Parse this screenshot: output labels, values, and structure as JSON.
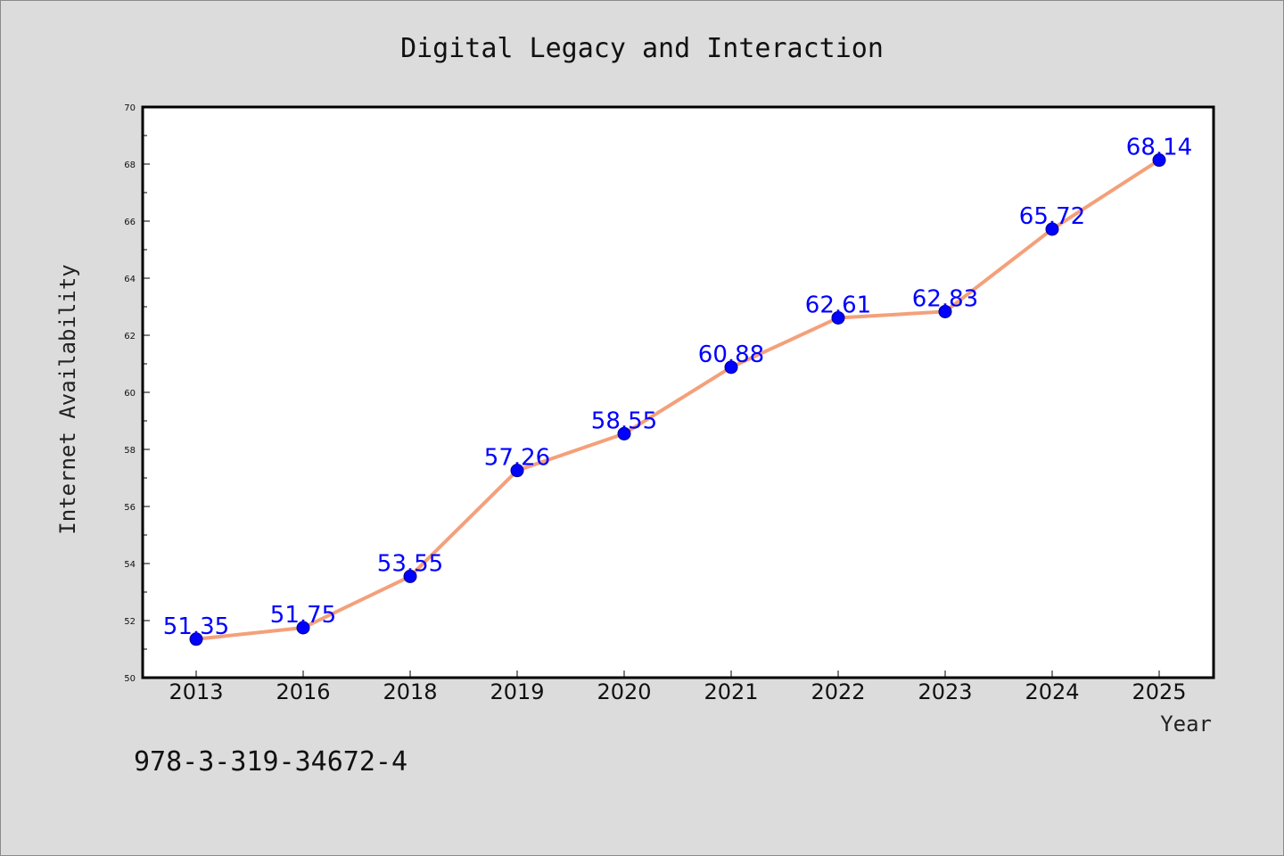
{
  "chart_data": {
    "type": "line",
    "title": "Digital Legacy and Interaction",
    "xlabel": "Year",
    "ylabel": "Internet Availability",
    "categories": [
      "2013",
      "2016",
      "2018",
      "2019",
      "2020",
      "2021",
      "2022",
      "2023",
      "2024",
      "2025"
    ],
    "values": [
      51.35,
      51.75,
      53.55,
      57.26,
      58.55,
      60.88,
      62.61,
      62.83,
      65.72,
      68.14
    ],
    "data_labels": [
      "51.35",
      "51.75",
      "53.55",
      "57.26",
      "58.55",
      "60.88",
      "62.61",
      "62.83",
      "65.72",
      "68.14"
    ],
    "ylim": [
      50,
      70
    ],
    "yticks": [
      "50",
      "52",
      "54",
      "56",
      "58",
      "60",
      "62",
      "64",
      "66",
      "68",
      "70"
    ],
    "grid": false,
    "legend": "none",
    "line_color": "#f4a07a",
    "marker_color": "#0000ff",
    "label_color": "#0000ff"
  },
  "annotation": "978-3-319-34672-4"
}
